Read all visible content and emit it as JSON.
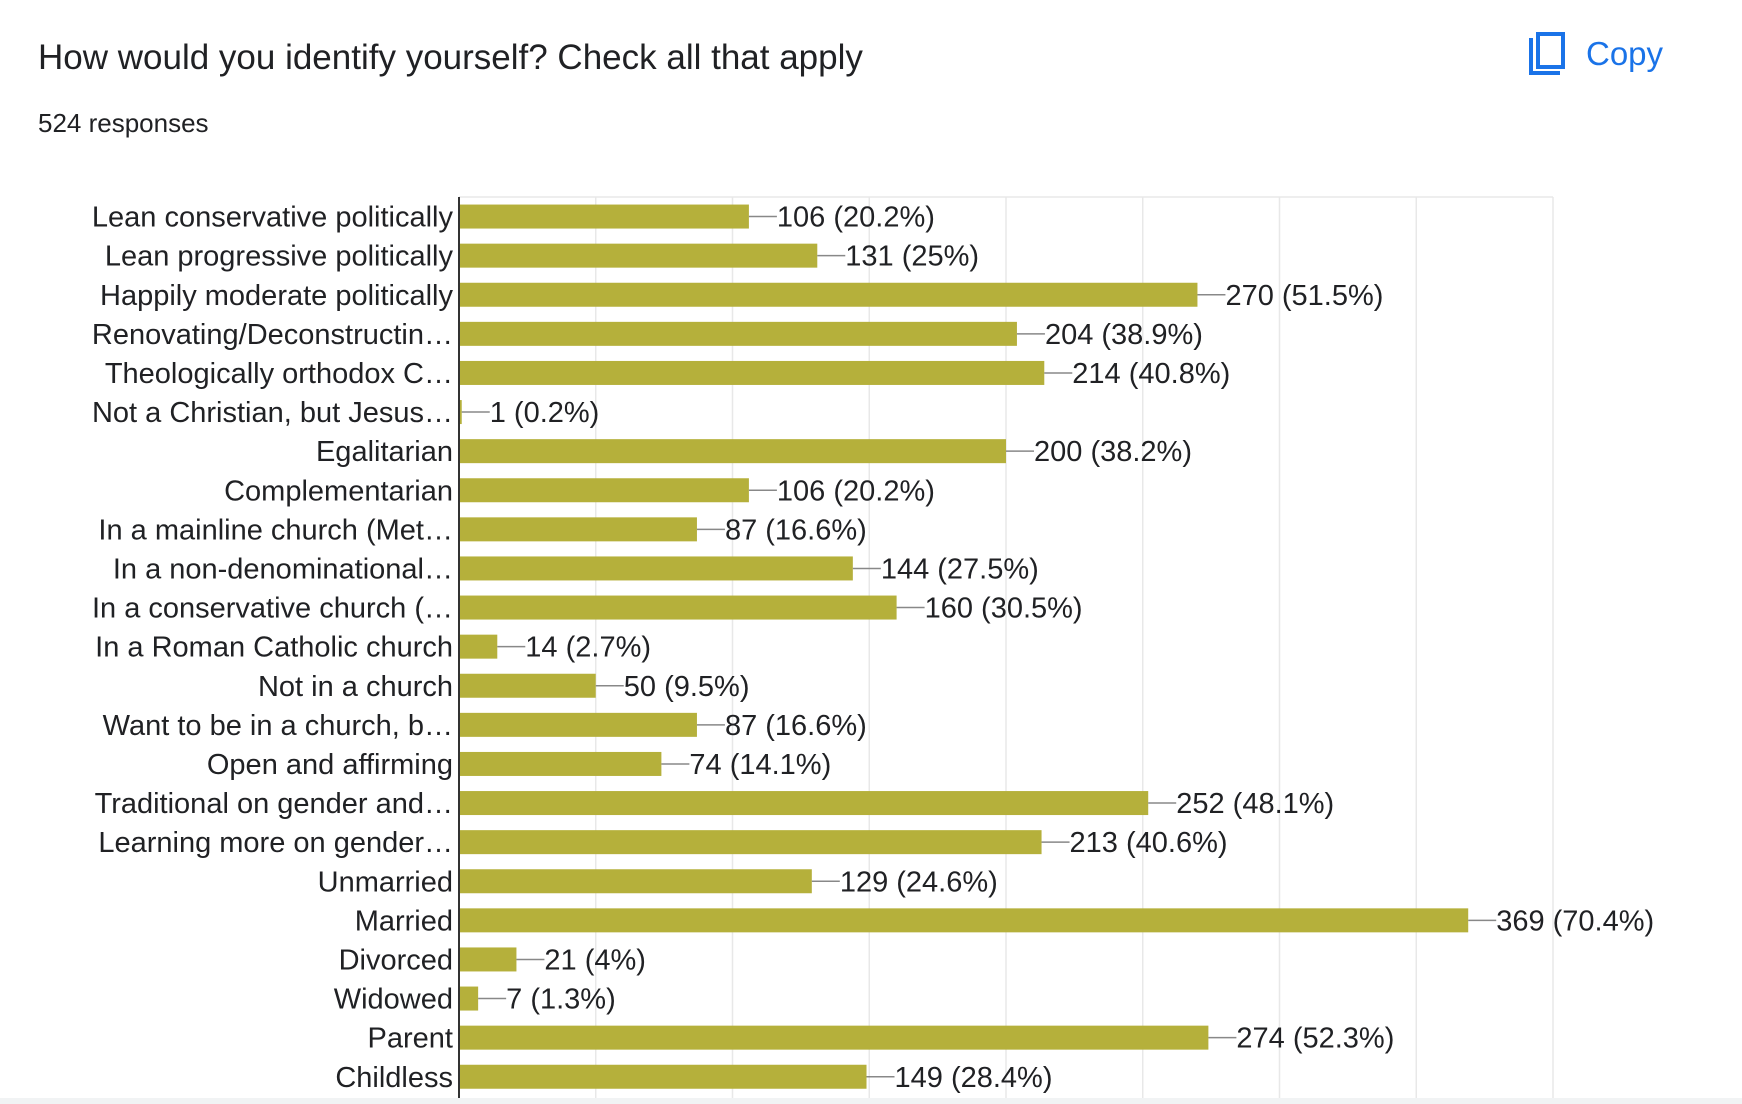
{
  "header": {
    "title": "How would you identify yourself? Check all that apply",
    "responses": "524 responses",
    "copy_label": "Copy"
  },
  "colors": {
    "bar": "#b5b03b",
    "accent": "#1a73e8",
    "text": "#202124"
  },
  "icons": {
    "copy": "copy-icon"
  },
  "chart_data": {
    "type": "bar",
    "orientation": "horizontal",
    "title": "How would you identify yourself? Check all that apply",
    "subtitle": "524 responses",
    "xlim": [
      0,
      400
    ],
    "grid": true,
    "categories": [
      "Lean conservative politically",
      "Lean progressive politically",
      "Happily moderate politically",
      "Renovating/Deconstructin…",
      "Theologically orthodox C…",
      "Not a Christian, but Jesus…",
      "Egalitarian",
      "Complementarian",
      "In a mainline church (Met…",
      "In a non-denominational…",
      "In a conservative church (…",
      "In a Roman Catholic church",
      "Not in a church",
      "Want to be in a church, b…",
      "Open and affirming",
      "Traditional on gender and…",
      "Learning more on gender…",
      "Unmarried",
      "Married",
      "Divorced",
      "Widowed",
      "Parent",
      "Childless"
    ],
    "values": [
      106,
      131,
      270,
      204,
      214,
      1,
      200,
      106,
      87,
      144,
      160,
      14,
      50,
      87,
      74,
      252,
      213,
      129,
      369,
      21,
      7,
      274,
      149
    ],
    "data_labels": [
      "106 (20.2%)",
      "131 (25%)",
      "270 (51.5%)",
      "204 (38.9%)",
      "214 (40.8%)",
      "1 (0.2%)",
      "200 (38.2%)",
      "106 (20.2%)",
      "87 (16.6%)",
      "144 (27.5%)",
      "160 (30.5%)",
      "14 (2.7%)",
      "50 (9.5%)",
      "87 (16.6%)",
      "74 (14.1%)",
      "252 (48.1%)",
      "213 (40.6%)",
      "129 (24.6%)",
      "369 (70.4%)",
      "21 (4%)",
      "7 (1.3%)",
      "274 (52.3%)",
      "149 (28.4%)"
    ]
  }
}
